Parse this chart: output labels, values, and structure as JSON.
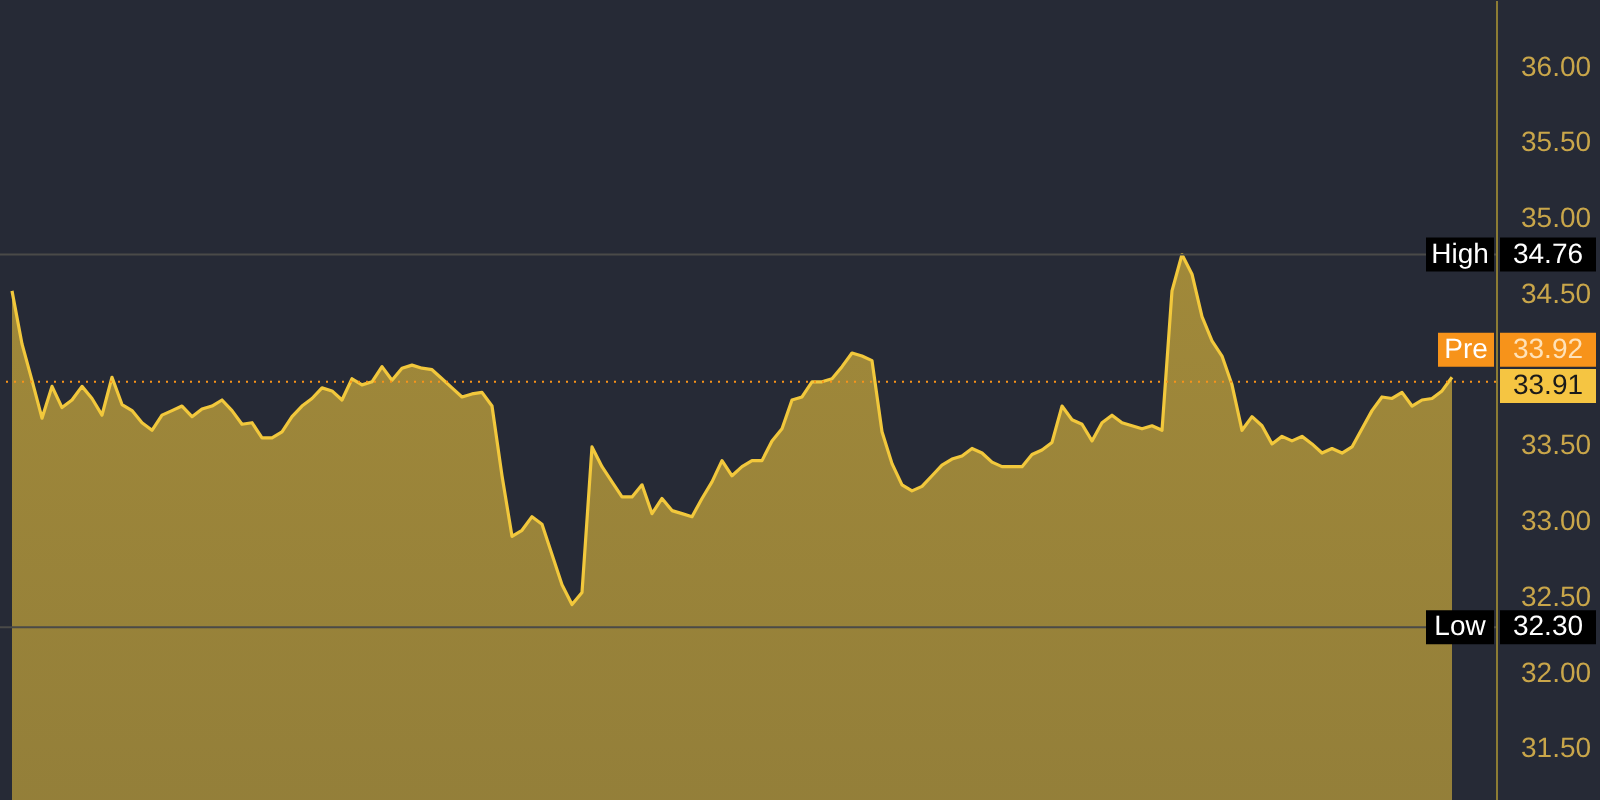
{
  "chart_data": {
    "type": "area",
    "categories": [
      null,
      null,
      null,
      null,
      null,
      null,
      null,
      null,
      null,
      null,
      null,
      null,
      null,
      null,
      null,
      null,
      null,
      null,
      null,
      null,
      null,
      null,
      null,
      null,
      null,
      null,
      null,
      null,
      null,
      null,
      null,
      null,
      null,
      null,
      null,
      null,
      null,
      null,
      null,
      null,
      null,
      null,
      null,
      null,
      null,
      null,
      null,
      null,
      null,
      null,
      null,
      null,
      null,
      null,
      null,
      null,
      null,
      null,
      null,
      null,
      null,
      null,
      null,
      null,
      null,
      null,
      null,
      null,
      null,
      null,
      null,
      null,
      null,
      null,
      null,
      null,
      null,
      null,
      null,
      null,
      null,
      null,
      null,
      null,
      null,
      null,
      null,
      null,
      null,
      null,
      null,
      null,
      null,
      null,
      null,
      null,
      null,
      null,
      null,
      null,
      null,
      null,
      null,
      null,
      null,
      null,
      null,
      null,
      null,
      null,
      null,
      null,
      null,
      null,
      null,
      null,
      null,
      null,
      null,
      null,
      null,
      null,
      null,
      null,
      null,
      null,
      null,
      null,
      null,
      null,
      null,
      null,
      null,
      null,
      null,
      null,
      null,
      null,
      null,
      null,
      null,
      null,
      null,
      null,
      null
    ],
    "series": [
      {
        "color": "#f2c83c",
        "values": [
          34.52,
          34.17,
          33.93,
          33.68,
          33.89,
          33.75,
          33.8,
          33.89,
          33.81,
          33.7,
          33.95,
          33.77,
          33.73,
          33.65,
          33.6,
          33.7,
          33.73,
          33.76,
          33.69,
          33.74,
          33.76,
          33.8,
          33.73,
          33.64,
          33.65,
          33.55,
          33.55,
          33.59,
          33.69,
          33.76,
          33.81,
          33.88,
          33.86,
          33.8,
          33.94,
          33.9,
          33.92,
          34.02,
          33.93,
          34.01,
          34.03,
          34.01,
          34.0,
          33.94,
          33.88,
          33.82,
          33.84,
          33.85,
          33.76,
          33.3,
          32.9,
          32.94,
          33.03,
          32.98,
          32.78,
          32.58,
          32.45,
          32.53,
          33.49,
          33.36,
          33.26,
          33.16,
          33.16,
          33.24,
          33.05,
          33.15,
          33.07,
          33.05,
          33.03,
          33.15,
          33.26,
          33.4,
          33.3,
          33.36,
          33.4,
          33.4,
          33.53,
          33.61,
          33.8,
          33.82,
          33.92,
          33.92,
          33.94,
          34.02,
          34.11,
          34.09,
          34.06,
          33.59,
          33.38,
          33.24,
          33.2,
          33.23,
          33.3,
          33.37,
          33.41,
          33.43,
          33.48,
          33.45,
          33.39,
          33.36,
          33.36,
          33.36,
          33.44,
          33.47,
          33.52,
          33.76,
          33.67,
          33.64,
          33.53,
          33.65,
          33.7,
          33.65,
          33.63,
          33.61,
          33.63,
          33.6,
          34.52,
          34.76,
          34.63,
          34.35,
          34.19,
          34.09,
          33.9,
          33.6,
          33.69,
          33.63,
          33.51,
          33.56,
          33.53,
          33.56,
          33.51,
          33.45,
          33.48,
          33.45,
          33.49,
          33.61,
          33.73,
          33.82,
          33.81,
          33.85,
          33.76,
          33.8,
          33.81,
          33.86,
          33.95
        ]
      }
    ],
    "ylim": [
      31.16,
      36.44
    ],
    "yticks": [
      {
        "value": 31.5,
        "label": "31.50"
      },
      {
        "value": 32,
        "label": "32.00"
      },
      {
        "value": 32.5,
        "label": "32.50"
      },
      {
        "value": 33,
        "label": "33.00"
      },
      {
        "value": 33.5,
        "label": "33.50"
      },
      {
        "value": 34.5,
        "label": "34.50"
      },
      {
        "value": 35,
        "label": "35.00"
      },
      {
        "value": 35.5,
        "label": "35.50"
      },
      {
        "value": 36,
        "label": "36.00"
      }
    ],
    "ref_lines": [
      {
        "axis": "y",
        "value": 34.76,
        "label": "High 34.76",
        "color": "#4a4a48",
        "line_style": "solid"
      },
      {
        "axis": "y",
        "value": 32.3,
        "label": "Low 32.30",
        "color": "#4a4a48",
        "line_style": "solid"
      },
      {
        "axis": "y",
        "value": 33.92,
        "label": "Pre 33.92",
        "color": "#f7931a",
        "line_style": "dotted"
      }
    ],
    "annotations": [
      "33.91"
    ]
  }
}
